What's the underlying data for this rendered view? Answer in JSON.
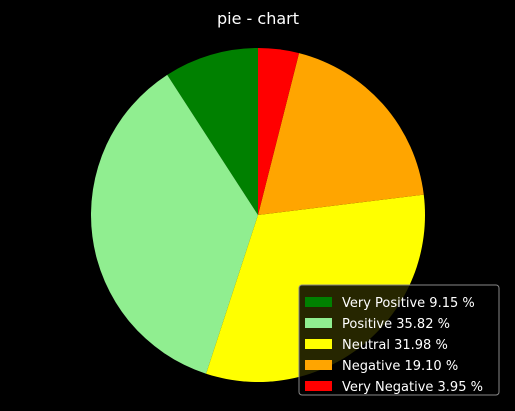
{
  "chart_data": {
    "type": "pie",
    "title": "pie - chart",
    "start_angle_deg": 90,
    "direction": "clockwise",
    "legend_position": "lower-right",
    "slices": [
      {
        "label": "Very Positive 9.15 %",
        "value": 9.15,
        "color": "#008000"
      },
      {
        "label": "Positive 35.82 %",
        "value": 35.82,
        "color": "#90EE90"
      },
      {
        "label": "Neutral 31.98 %",
        "value": 31.98,
        "color": "#FFFF00"
      },
      {
        "label": "Negative 19.10 %",
        "value": 19.1,
        "color": "#FFA500"
      },
      {
        "label": "Very Negative 3.95 %",
        "value": 3.95,
        "color": "#FF0000"
      }
    ],
    "slice_order": "counterclockwise"
  }
}
